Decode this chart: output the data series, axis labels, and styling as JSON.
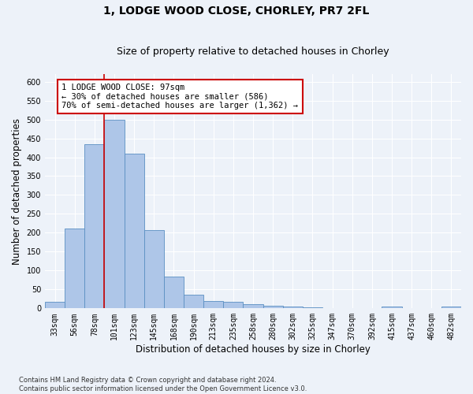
{
  "title_line1": "1, LODGE WOOD CLOSE, CHORLEY, PR7 2FL",
  "title_line2": "Size of property relative to detached houses in Chorley",
  "xlabel": "Distribution of detached houses by size in Chorley",
  "ylabel": "Number of detached properties",
  "footnote": "Contains HM Land Registry data © Crown copyright and database right 2024.\nContains public sector information licensed under the Open Government Licence v3.0.",
  "bin_labels": [
    "33sqm",
    "56sqm",
    "78sqm",
    "101sqm",
    "123sqm",
    "145sqm",
    "168sqm",
    "190sqm",
    "213sqm",
    "235sqm",
    "258sqm",
    "280sqm",
    "302sqm",
    "325sqm",
    "347sqm",
    "370sqm",
    "392sqm",
    "415sqm",
    "437sqm",
    "460sqm",
    "482sqm"
  ],
  "bar_heights": [
    17,
    212,
    435,
    500,
    410,
    208,
    84,
    37,
    20,
    17,
    12,
    7,
    5,
    2,
    1,
    1,
    1,
    5,
    1,
    1,
    5
  ],
  "bar_color": "#aec6e8",
  "bar_edge_color": "#5a8fc2",
  "vline_bin_index": 3,
  "vline_color": "#cc0000",
  "annotation_text": "1 LODGE WOOD CLOSE: 97sqm\n← 30% of detached houses are smaller (586)\n70% of semi-detached houses are larger (1,362) →",
  "annotation_box_color": "#cc0000",
  "annotation_facecolor": "white",
  "ylim": [
    0,
    620
  ],
  "yticks": [
    0,
    50,
    100,
    150,
    200,
    250,
    300,
    350,
    400,
    450,
    500,
    550,
    600
  ],
  "background_color": "#edf2f9",
  "grid_color": "#ffffff",
  "title_fontsize": 10,
  "subtitle_fontsize": 9,
  "axis_label_fontsize": 8.5,
  "tick_fontsize": 7,
  "annotation_fontsize": 7.5
}
